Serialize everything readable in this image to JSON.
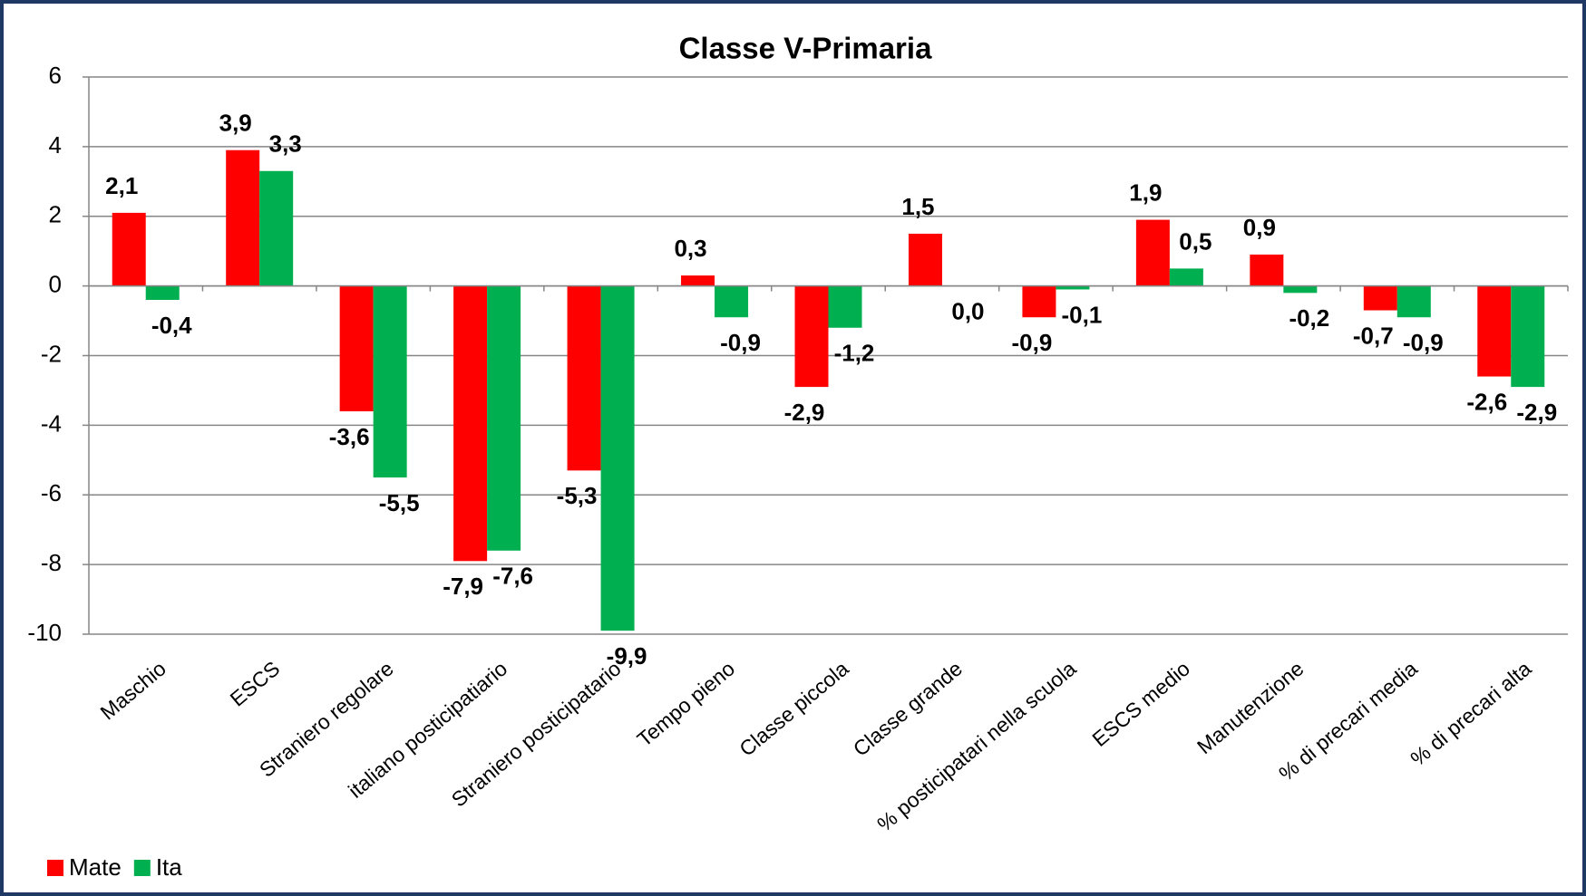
{
  "chart_data": {
    "type": "bar",
    "title": "Classe V-Primaria",
    "categories": [
      "Maschio",
      "ESCS",
      "Straniero regolare",
      "italiano posticipatiario",
      "Straniero  posticipatario",
      "Tempo pieno",
      "Classe piccola",
      "Classe grande",
      "% posticipatari nella scuola",
      "ESCS medio",
      "Manutenzione",
      "% di precari media",
      "% di precari alta"
    ],
    "series": [
      {
        "name": "Mate",
        "color": "#ff0000",
        "values": [
          2.1,
          3.9,
          -3.6,
          -7.9,
          -5.3,
          0.3,
          -2.9,
          1.5,
          -0.9,
          1.9,
          0.9,
          -0.7,
          -2.6
        ],
        "value_labels": [
          "2,1",
          "3,9",
          "-3,6",
          "-7,9",
          "-5,3",
          "0,3",
          "-2,9",
          "1,5",
          "-0,9",
          "1,9",
          "0,9",
          "-0,7",
          "-2,6"
        ]
      },
      {
        "name": "Ita",
        "color": "#00b050",
        "values": [
          -0.4,
          3.3,
          -5.5,
          -7.6,
          -9.9,
          -0.9,
          -1.2,
          0.0,
          -0.1,
          0.5,
          -0.2,
          -0.9,
          -2.9
        ],
        "value_labels": [
          "-0,4",
          "3,3",
          "-5,5",
          "-7,6",
          "-9,9",
          "-0,9",
          "-1,2",
          "0,0",
          "-0,1",
          "0,5",
          "-0,2",
          "-0,9",
          "-2,9"
        ]
      }
    ],
    "ylim": [
      -10,
      6
    ],
    "yticks": [
      6,
      4,
      2,
      0,
      -2,
      -4,
      -6,
      -8,
      -10
    ],
    "grid": true,
    "legend": "bottom-left"
  }
}
